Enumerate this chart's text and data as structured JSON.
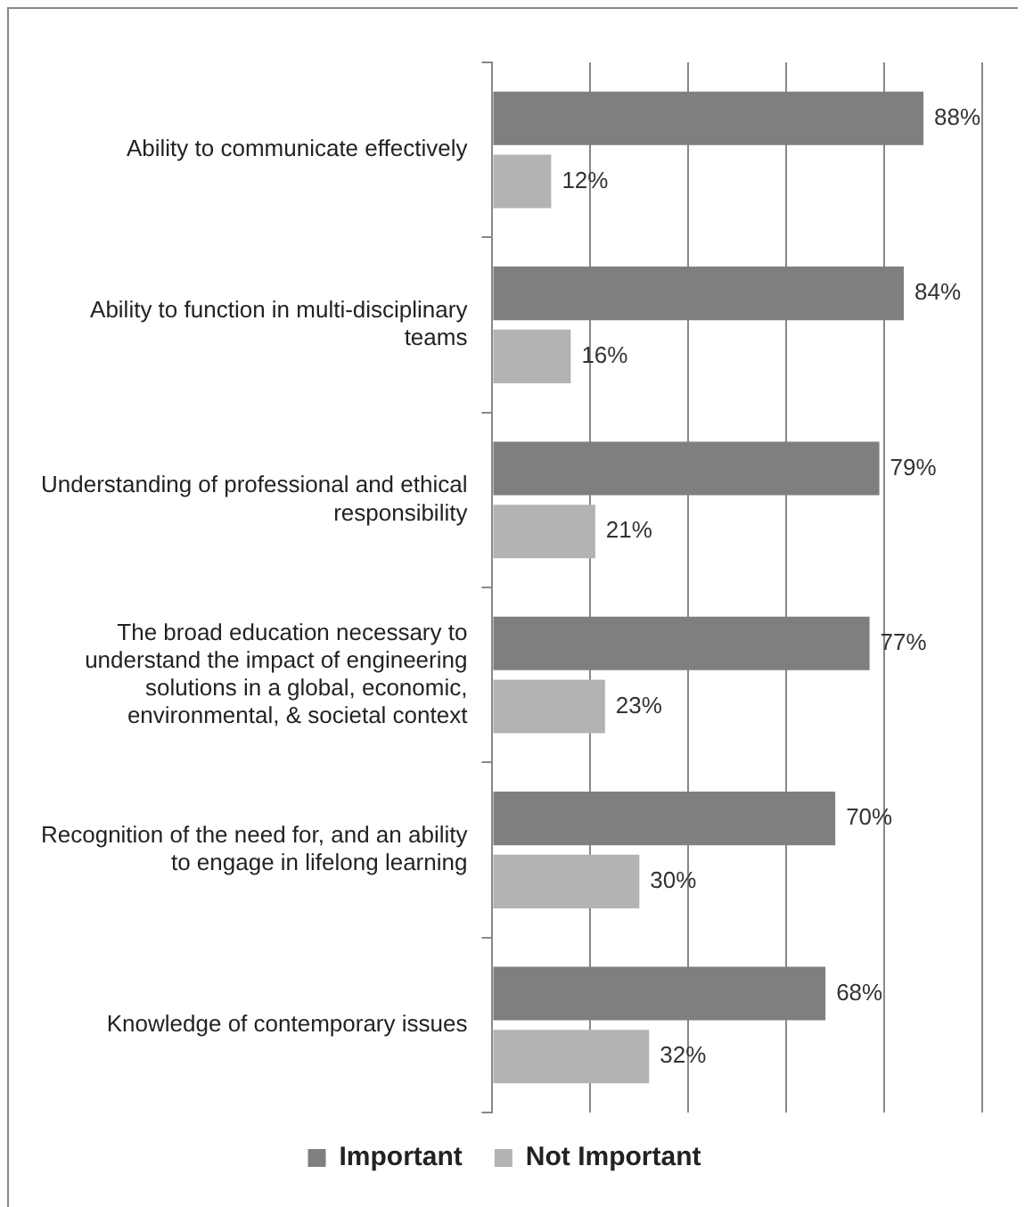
{
  "chart_data": {
    "type": "bar",
    "orientation": "horizontal",
    "categories": [
      "Ability to communicate effectively",
      "Ability to function in multi-disciplinary teams",
      "Understanding of professional and ethical responsibility",
      "The broad education necessary to understand the impact of engineering solutions in a global, economic, environmental, & societal context",
      "Recognition of the need for, and an ability to engage in lifelong learning",
      "Knowledge of contemporary issues"
    ],
    "series": [
      {
        "name": "Important",
        "color": "#7f7f7f",
        "values": [
          88,
          84,
          79,
          77,
          70,
          68
        ],
        "value_labels": [
          "88%",
          "84%",
          "79%",
          "77%",
          "70%",
          "68%"
        ]
      },
      {
        "name": "Not Important",
        "color": "#b3b3b3",
        "values": [
          12,
          16,
          21,
          23,
          30,
          32
        ],
        "value_labels": [
          "12%",
          "16%",
          "21%",
          "23%",
          "30%",
          "32%"
        ]
      }
    ],
    "xlim": [
      0,
      100
    ],
    "xticks": [
      {
        "value": 0,
        "label": null
      },
      {
        "value": 20,
        "label": null
      },
      {
        "value": 40,
        "label": null
      },
      {
        "value": 60,
        "label": null
      },
      {
        "value": 80,
        "label": null
      },
      {
        "value": 100,
        "label": null
      }
    ],
    "tick_labels": "y",
    "grid": "x",
    "legend": "bottom"
  }
}
